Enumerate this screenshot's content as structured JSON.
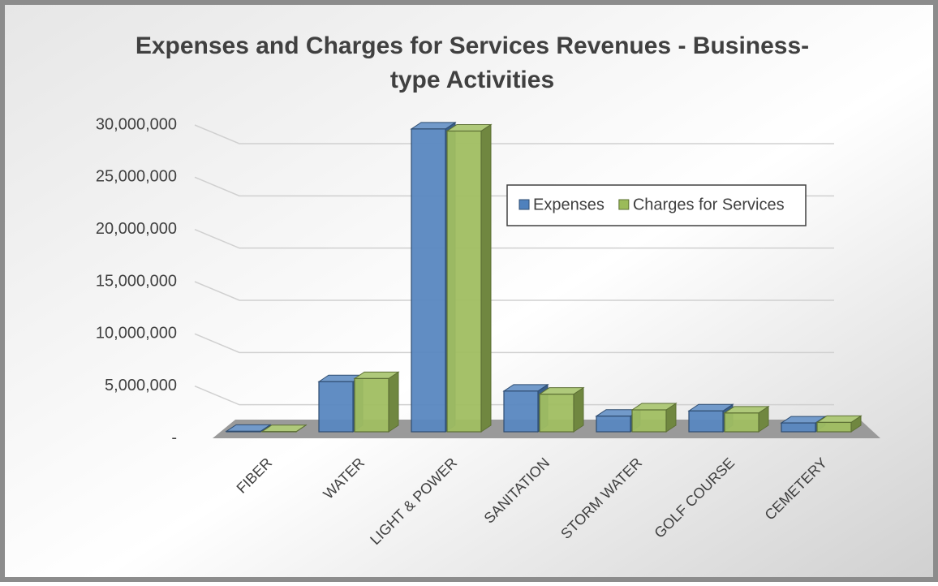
{
  "chart_data": {
    "type": "bar3d",
    "title_lines": [
      "Expenses and Charges for Services Revenues - Business-",
      "type Activities"
    ],
    "categories": [
      "FIBER",
      "WATER",
      "LIGHT & POWER",
      "SANITATION",
      "STORM WATER",
      "GOLF COURSE",
      "CEMETERY"
    ],
    "series": [
      {
        "name": "Expenses",
        "color": "#4f81bd",
        "values": [
          50000,
          4800000,
          29000000,
          3900000,
          1500000,
          2000000,
          850000
        ]
      },
      {
        "name": "Charges for Services",
        "color": "#9bbb59",
        "values": [
          20000,
          5100000,
          28800000,
          3600000,
          2100000,
          1800000,
          900000
        ]
      }
    ],
    "ylim": [
      0,
      30000000
    ],
    "yticks": [
      {
        "value": 0,
        "label": "-"
      },
      {
        "value": 5000000,
        "label": "5,000,000"
      },
      {
        "value": 10000000,
        "label": "10,000,000"
      },
      {
        "value": 15000000,
        "label": "15,000,000"
      },
      {
        "value": 20000000,
        "label": "20,000,000"
      },
      {
        "value": 25000000,
        "label": "25,000,000"
      },
      {
        "value": 30000000,
        "label": "30,000,000"
      }
    ],
    "grid": true,
    "legend": "upper right"
  }
}
